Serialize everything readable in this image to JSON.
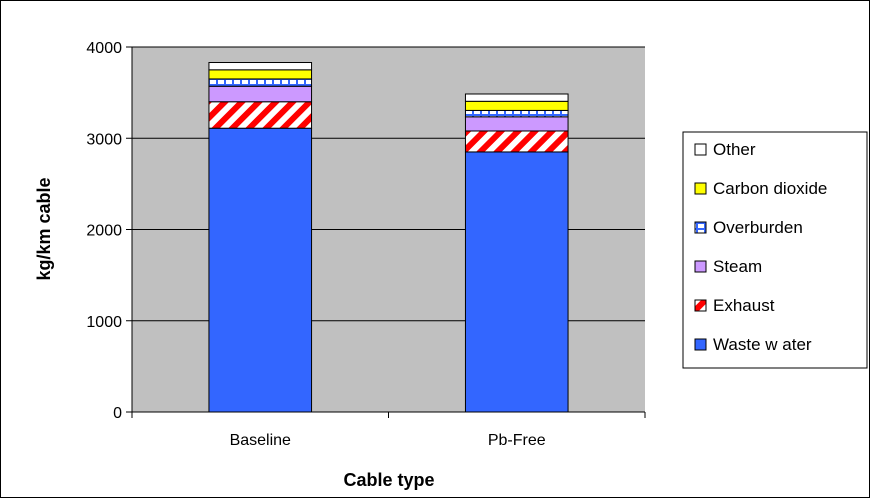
{
  "chart_data": {
    "type": "bar",
    "stacked": true,
    "categories": [
      "Baseline",
      "Pb-Free"
    ],
    "series": [
      {
        "name": "Waste w ater",
        "values": [
          3110,
          2850
        ],
        "color": "#3366ff",
        "pattern": "solid"
      },
      {
        "name": "Exhaust",
        "values": [
          290,
          230
        ],
        "color": "#ff0000",
        "pattern": "diagonal-hatch"
      },
      {
        "name": "Steam",
        "values": [
          170,
          155
        ],
        "color": "#cc99ff",
        "pattern": "solid"
      },
      {
        "name": "Overburden",
        "values": [
          80,
          70
        ],
        "color": "#3366ff",
        "pattern": "grid"
      },
      {
        "name": "Carbon dioxide",
        "values": [
          100,
          100
        ],
        "color": "#ffff00",
        "pattern": "solid"
      },
      {
        "name": "Other",
        "values": [
          80,
          80
        ],
        "color": "#ffffff",
        "pattern": "solid"
      }
    ],
    "title": "",
    "xlabel": "Cable type",
    "ylabel": "kg/km cable",
    "ylim": [
      0,
      4000
    ],
    "yticks": [
      "0",
      "1000",
      "2000",
      "3000",
      "4000"
    ],
    "grid": true,
    "legend_position": "right",
    "plot_background": "#c0c0c0"
  }
}
